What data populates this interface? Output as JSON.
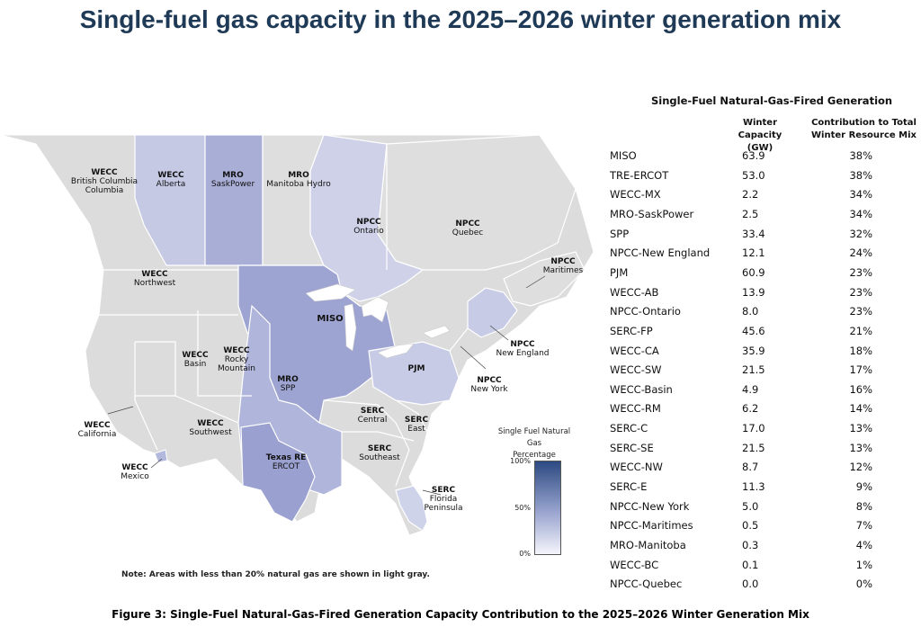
{
  "page": {
    "title": "Single-fuel gas capacity in the 2025–2026 winter generation mix"
  },
  "map": {
    "labels": [
      {
        "region": "WECC",
        "sub": "British Columbia",
        "sub2": "",
        "key": "wecc-bc"
      },
      {
        "region": "WECC",
        "sub": "Alberta",
        "sub2": "",
        "key": "wecc-ab"
      },
      {
        "region": "MRO",
        "sub": "SaskPower",
        "sub2": "",
        "key": "mro-saskpower"
      },
      {
        "region": "MRO",
        "sub": "Manitoba Hydro",
        "sub2": "",
        "key": "mro-manitoba"
      },
      {
        "region": "NPCC",
        "sub": "Ontario",
        "sub2": "",
        "key": "npcc-ontario"
      },
      {
        "region": "NPCC",
        "sub": "Quebec",
        "sub2": "",
        "key": "npcc-quebec"
      },
      {
        "region": "NPCC",
        "sub": "Maritimes",
        "sub2": "",
        "key": "npcc-maritimes"
      },
      {
        "region": "WECC",
        "sub": "Northwest",
        "sub2": "",
        "key": "wecc-nw"
      },
      {
        "region": "MISO",
        "sub": "",
        "sub2": "",
        "key": "miso"
      },
      {
        "region": "NPCC",
        "sub": "New England",
        "sub2": "",
        "key": "npcc-ne"
      },
      {
        "region": "WECC",
        "sub": "Basin",
        "sub2": "",
        "key": "wecc-basin"
      },
      {
        "region": "WECC",
        "sub": "Rocky",
        "sub2": "Mountain",
        "key": "wecc-rm"
      },
      {
        "region": "MRO",
        "sub": "SPP",
        "sub2": "",
        "key": "spp"
      },
      {
        "region": "PJM",
        "sub": "",
        "sub2": "",
        "key": "pjm"
      },
      {
        "region": "NPCC",
        "sub": "New York",
        "sub2": "",
        "key": "npcc-ny"
      },
      {
        "region": "SERC",
        "sub": "Central",
        "sub2": "",
        "key": "serc-c"
      },
      {
        "region": "SERC",
        "sub": "East",
        "sub2": "",
        "key": "serc-e"
      },
      {
        "region": "WECC",
        "sub": "California",
        "sub2": "",
        "key": "wecc-ca"
      },
      {
        "region": "WECC",
        "sub": "Southwest",
        "sub2": "",
        "key": "wecc-sw"
      },
      {
        "region": "SERC",
        "sub": "Southeast",
        "sub2": "",
        "key": "serc-se"
      },
      {
        "region": "Texas RE",
        "sub": "ERCOT",
        "sub2": "",
        "key": "ercot"
      },
      {
        "region": "WECC",
        "sub": "Mexico",
        "sub2": "",
        "key": "wecc-mx"
      },
      {
        "region": "SERC",
        "sub": "Florida",
        "sub2": "Peninsula",
        "key": "serc-fp"
      }
    ],
    "note": "Note: Areas with less than 20% natural gas are shown in light gray.",
    "legend": {
      "title_line1": "Single Fuel Natural Gas",
      "title_line2": "Percentage",
      "ticks": [
        "100%",
        "50%",
        "0%"
      ],
      "color_high": "#2c4a82",
      "color_low": "#f4f5fb",
      "color_gray": "#dcdcdc"
    }
  },
  "table": {
    "title": "Single-Fuel Natural-Gas-Fired Generation",
    "col_capacity_1": "Winter",
    "col_capacity_2": "Capacity (GW)",
    "col_contrib_1": "Contribution to Total",
    "col_contrib_2": "Winter Resource Mix",
    "rows": [
      {
        "area": "MISO",
        "capacity": "63.9",
        "share": "38%"
      },
      {
        "area": "TRE-ERCOT",
        "capacity": "53.0",
        "share": "38%"
      },
      {
        "area": "WECC-MX",
        "capacity": "2.2",
        "share": "34%"
      },
      {
        "area": "MRO-SaskPower",
        "capacity": "2.5",
        "share": "34%"
      },
      {
        "area": "SPP",
        "capacity": "33.4",
        "share": "32%"
      },
      {
        "area": "NPCC-New England",
        "capacity": "12.1",
        "share": "24%"
      },
      {
        "area": "PJM",
        "capacity": "60.9",
        "share": "23%"
      },
      {
        "area": "WECC-AB",
        "capacity": "13.9",
        "share": "23%"
      },
      {
        "area": "NPCC-Ontario",
        "capacity": "8.0",
        "share": "23%"
      },
      {
        "area": "SERC-FP",
        "capacity": "45.6",
        "share": "21%"
      },
      {
        "area": "WECC-CA",
        "capacity": "35.9",
        "share": "18%"
      },
      {
        "area": "WECC-SW",
        "capacity": "21.5",
        "share": "17%"
      },
      {
        "area": "WECC-Basin",
        "capacity": "4.9",
        "share": "16%"
      },
      {
        "area": "WECC-RM",
        "capacity": "6.2",
        "share": "14%"
      },
      {
        "area": "SERC-C",
        "capacity": "17.0",
        "share": "13%"
      },
      {
        "area": "SERC-SE",
        "capacity": "21.5",
        "share": "13%"
      },
      {
        "area": "WECC-NW",
        "capacity": "8.7",
        "share": "12%"
      },
      {
        "area": "SERC-E",
        "capacity": "11.3",
        "share": "9%"
      },
      {
        "area": "NPCC-New York",
        "capacity": "5.0",
        "share": "8%"
      },
      {
        "area": "NPCC-Maritimes",
        "capacity": "0.5",
        "share": "7%"
      },
      {
        "area": "MRO-Manitoba",
        "capacity": "0.3",
        "share": "4%"
      },
      {
        "area": "WECC-BC",
        "capacity": "0.1",
        "share": "1%"
      },
      {
        "area": "NPCC-Quebec",
        "capacity": "0.0",
        "share": "0%"
      }
    ]
  },
  "caption": "Figure 3: Single-Fuel Natural-Gas-Fired Generation Capacity Contribution to the 2025–2026 Winter Generation Mix"
}
